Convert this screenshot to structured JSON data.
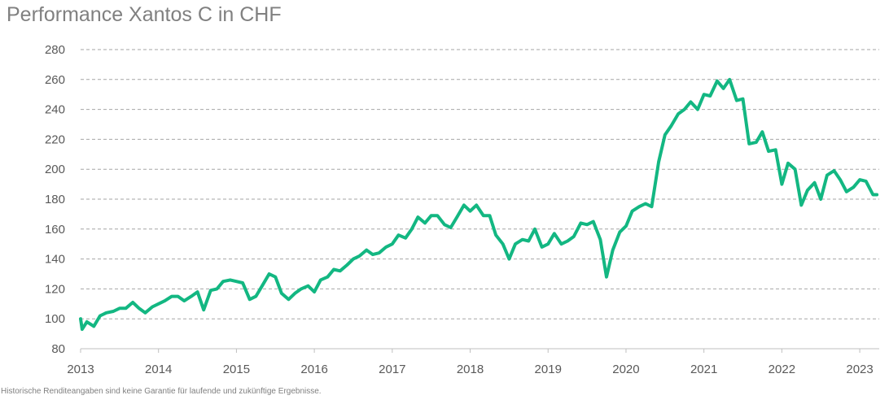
{
  "chart_data": {
    "type": "line",
    "title": "Performance Xantos C in CHF",
    "footnote": "Historische Renditeangaben sind keine Garantie für laufende und zukünftige Ergebnisse.",
    "xlabel": "",
    "ylabel": "",
    "ylim": [
      80,
      280
    ],
    "yticks": [
      80,
      100,
      120,
      140,
      160,
      180,
      200,
      220,
      240,
      260,
      280
    ],
    "xlim": [
      2013,
      2023.25
    ],
    "xticks": [
      2013,
      2014,
      2015,
      2016,
      2017,
      2018,
      2019,
      2020,
      2021,
      2022,
      2023
    ],
    "grid": "horizontal-dashed",
    "legend": "none",
    "line_color": "#13b782",
    "series": [
      {
        "x": [
          2013.0,
          2013.02,
          2013.08,
          2013.17,
          2013.25,
          2013.33,
          2013.42,
          2013.5,
          2013.58,
          2013.67,
          2013.75,
          2013.83,
          2013.92,
          2014.0,
          2014.08,
          2014.17,
          2014.25,
          2014.33,
          2014.42,
          2014.5,
          2014.58,
          2014.67,
          2014.75,
          2014.83,
          2014.92,
          2015.0,
          2015.08,
          2015.17,
          2015.25,
          2015.33,
          2015.42,
          2015.5,
          2015.58,
          2015.67,
          2015.75,
          2015.83,
          2015.92,
          2016.0,
          2016.08,
          2016.17,
          2016.25,
          2016.33,
          2016.42,
          2016.5,
          2016.58,
          2016.67,
          2016.75,
          2016.83,
          2016.92,
          2017.0,
          2017.08,
          2017.17,
          2017.25,
          2017.33,
          2017.42,
          2017.5,
          2017.58,
          2017.67,
          2017.75,
          2017.83,
          2017.92,
          2018.0,
          2018.08,
          2018.17,
          2018.25,
          2018.33,
          2018.42,
          2018.5,
          2018.58,
          2018.67,
          2018.75,
          2018.83,
          2018.92,
          2019.0,
          2019.08,
          2019.17,
          2019.25,
          2019.33,
          2019.42,
          2019.5,
          2019.58,
          2019.67,
          2019.75,
          2019.83,
          2019.92,
          2020.0,
          2020.08,
          2020.17,
          2020.25,
          2020.33,
          2020.42,
          2020.5,
          2020.58,
          2020.67,
          2020.75,
          2020.83,
          2020.92,
          2021.0,
          2021.08,
          2021.17,
          2021.25,
          2021.33,
          2021.42,
          2021.5,
          2021.58,
          2021.67,
          2021.75,
          2021.83,
          2021.92,
          2022.0,
          2022.08,
          2022.17,
          2022.25,
          2022.33,
          2022.42,
          2022.5,
          2022.58,
          2022.67,
          2022.75,
          2022.83,
          2022.92,
          2023.0,
          2023.08,
          2023.17,
          2023.22
        ],
        "values": [
          100,
          93,
          98,
          95,
          102,
          104,
          105,
          107,
          107,
          111,
          107,
          104,
          108,
          110,
          112,
          115,
          115,
          112,
          115,
          118,
          106,
          119,
          120,
          125,
          126,
          125,
          124,
          113,
          115,
          122,
          130,
          128,
          117,
          113,
          117,
          120,
          122,
          118,
          126,
          128,
          133,
          132,
          136,
          140,
          142,
          146,
          143,
          144,
          148,
          150,
          156,
          154,
          160,
          168,
          164,
          169,
          169,
          163,
          161,
          168,
          176,
          172,
          176,
          169,
          169,
          156,
          150,
          140,
          150,
          153,
          152,
          160,
          148,
          150,
          157,
          150,
          152,
          155,
          164,
          163,
          165,
          153,
          128,
          146,
          158,
          162,
          172,
          175,
          177,
          175,
          205,
          223,
          229,
          237,
          240,
          245,
          240,
          250,
          249,
          259,
          254,
          260,
          246,
          247,
          217,
          218,
          225,
          212,
          213,
          190,
          204,
          200,
          176,
          186,
          191,
          180,
          196,
          199,
          193,
          185,
          188,
          193,
          192,
          183,
          183
        ]
      }
    ]
  }
}
